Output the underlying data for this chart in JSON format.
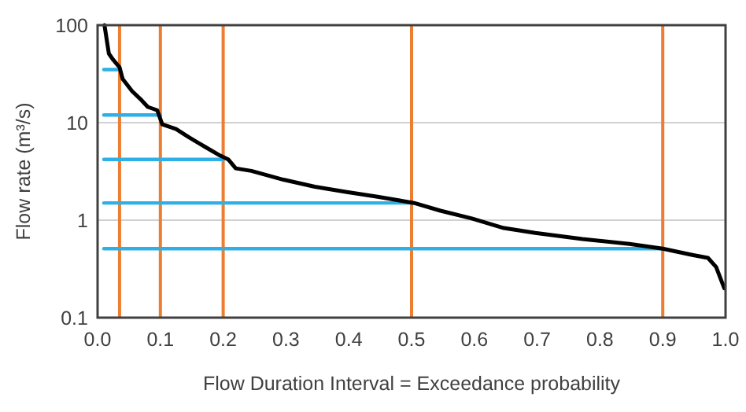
{
  "chart_data": {
    "type": "line",
    "xlabel": "Flow Duration Interval = Exceedance probability",
    "ylabel": "Flow rate (m³/s)",
    "log": "y",
    "grid": "y",
    "xlim": [
      0,
      1
    ],
    "ylim": [
      0.1,
      100
    ],
    "xticks": [
      {
        "value": 0,
        "label": "0.0"
      },
      {
        "value": 0.1,
        "label": "0.1"
      },
      {
        "value": 0.2,
        "label": "0.2"
      },
      {
        "value": 0.3,
        "label": "0.3"
      },
      {
        "value": 0.4,
        "label": "0.4"
      },
      {
        "value": 0.5,
        "label": "0.5"
      },
      {
        "value": 0.6,
        "label": "0.6"
      },
      {
        "value": 0.7,
        "label": "0.7"
      },
      {
        "value": 0.8,
        "label": "0.8"
      },
      {
        "value": 0.9,
        "label": "0.9"
      },
      {
        "value": 1,
        "label": "1.0"
      }
    ],
    "yticks": [
      0.1,
      1,
      10,
      100
    ],
    "ref_lines": [
      {
        "axis": "x",
        "value": 0.035,
        "color": "#ed7d31"
      },
      {
        "axis": "x",
        "value": 0.1,
        "color": "#ed7d31"
      },
      {
        "axis": "x",
        "value": 0.2,
        "color": "#ed7d31"
      },
      {
        "axis": "x",
        "value": 0.5,
        "color": "#ed7d31"
      },
      {
        "axis": "x",
        "value": 0.9,
        "color": "#ed7d31"
      }
    ],
    "series": [
      {
        "color": "#000000",
        "x": [
          0.011,
          0.018,
          0.025,
          0.035,
          0.04,
          0.055,
          0.07,
          0.08,
          0.095,
          0.103,
          0.125,
          0.145,
          0.17,
          0.195,
          0.208,
          0.22,
          0.245,
          0.296,
          0.346,
          0.395,
          0.446,
          0.504,
          0.546,
          0.596,
          0.647,
          0.697,
          0.772,
          0.847,
          0.9,
          0.947,
          0.972,
          0.985,
          0.998
        ],
        "values": [
          100,
          51,
          44,
          37,
          28,
          21,
          17,
          14.5,
          13.4,
          9.6,
          8.6,
          7.1,
          5.7,
          4.6,
          4.2,
          3.4,
          3.2,
          2.6,
          2.2,
          1.95,
          1.74,
          1.5,
          1.25,
          1.04,
          0.83,
          0.74,
          0.64,
          0.57,
          0.51,
          0.44,
          0.41,
          0.33,
          0.2
        ]
      },
      {
        "color": "#2eb0e6",
        "x": [
          0.01,
          0.035
        ],
        "values": [
          35,
          35
        ]
      },
      {
        "color": "#2eb0e6",
        "x": [
          0.01,
          0.1
        ],
        "values": [
          12,
          12
        ]
      },
      {
        "color": "#2eb0e6",
        "x": [
          0.01,
          0.2
        ],
        "values": [
          4.2,
          4.2
        ]
      },
      {
        "color": "#2eb0e6",
        "x": [
          0.01,
          0.5
        ],
        "values": [
          1.5,
          1.5
        ]
      },
      {
        "color": "#2eb0e6",
        "x": [
          0.01,
          0.9
        ],
        "values": [
          0.51,
          0.51
        ]
      }
    ]
  }
}
